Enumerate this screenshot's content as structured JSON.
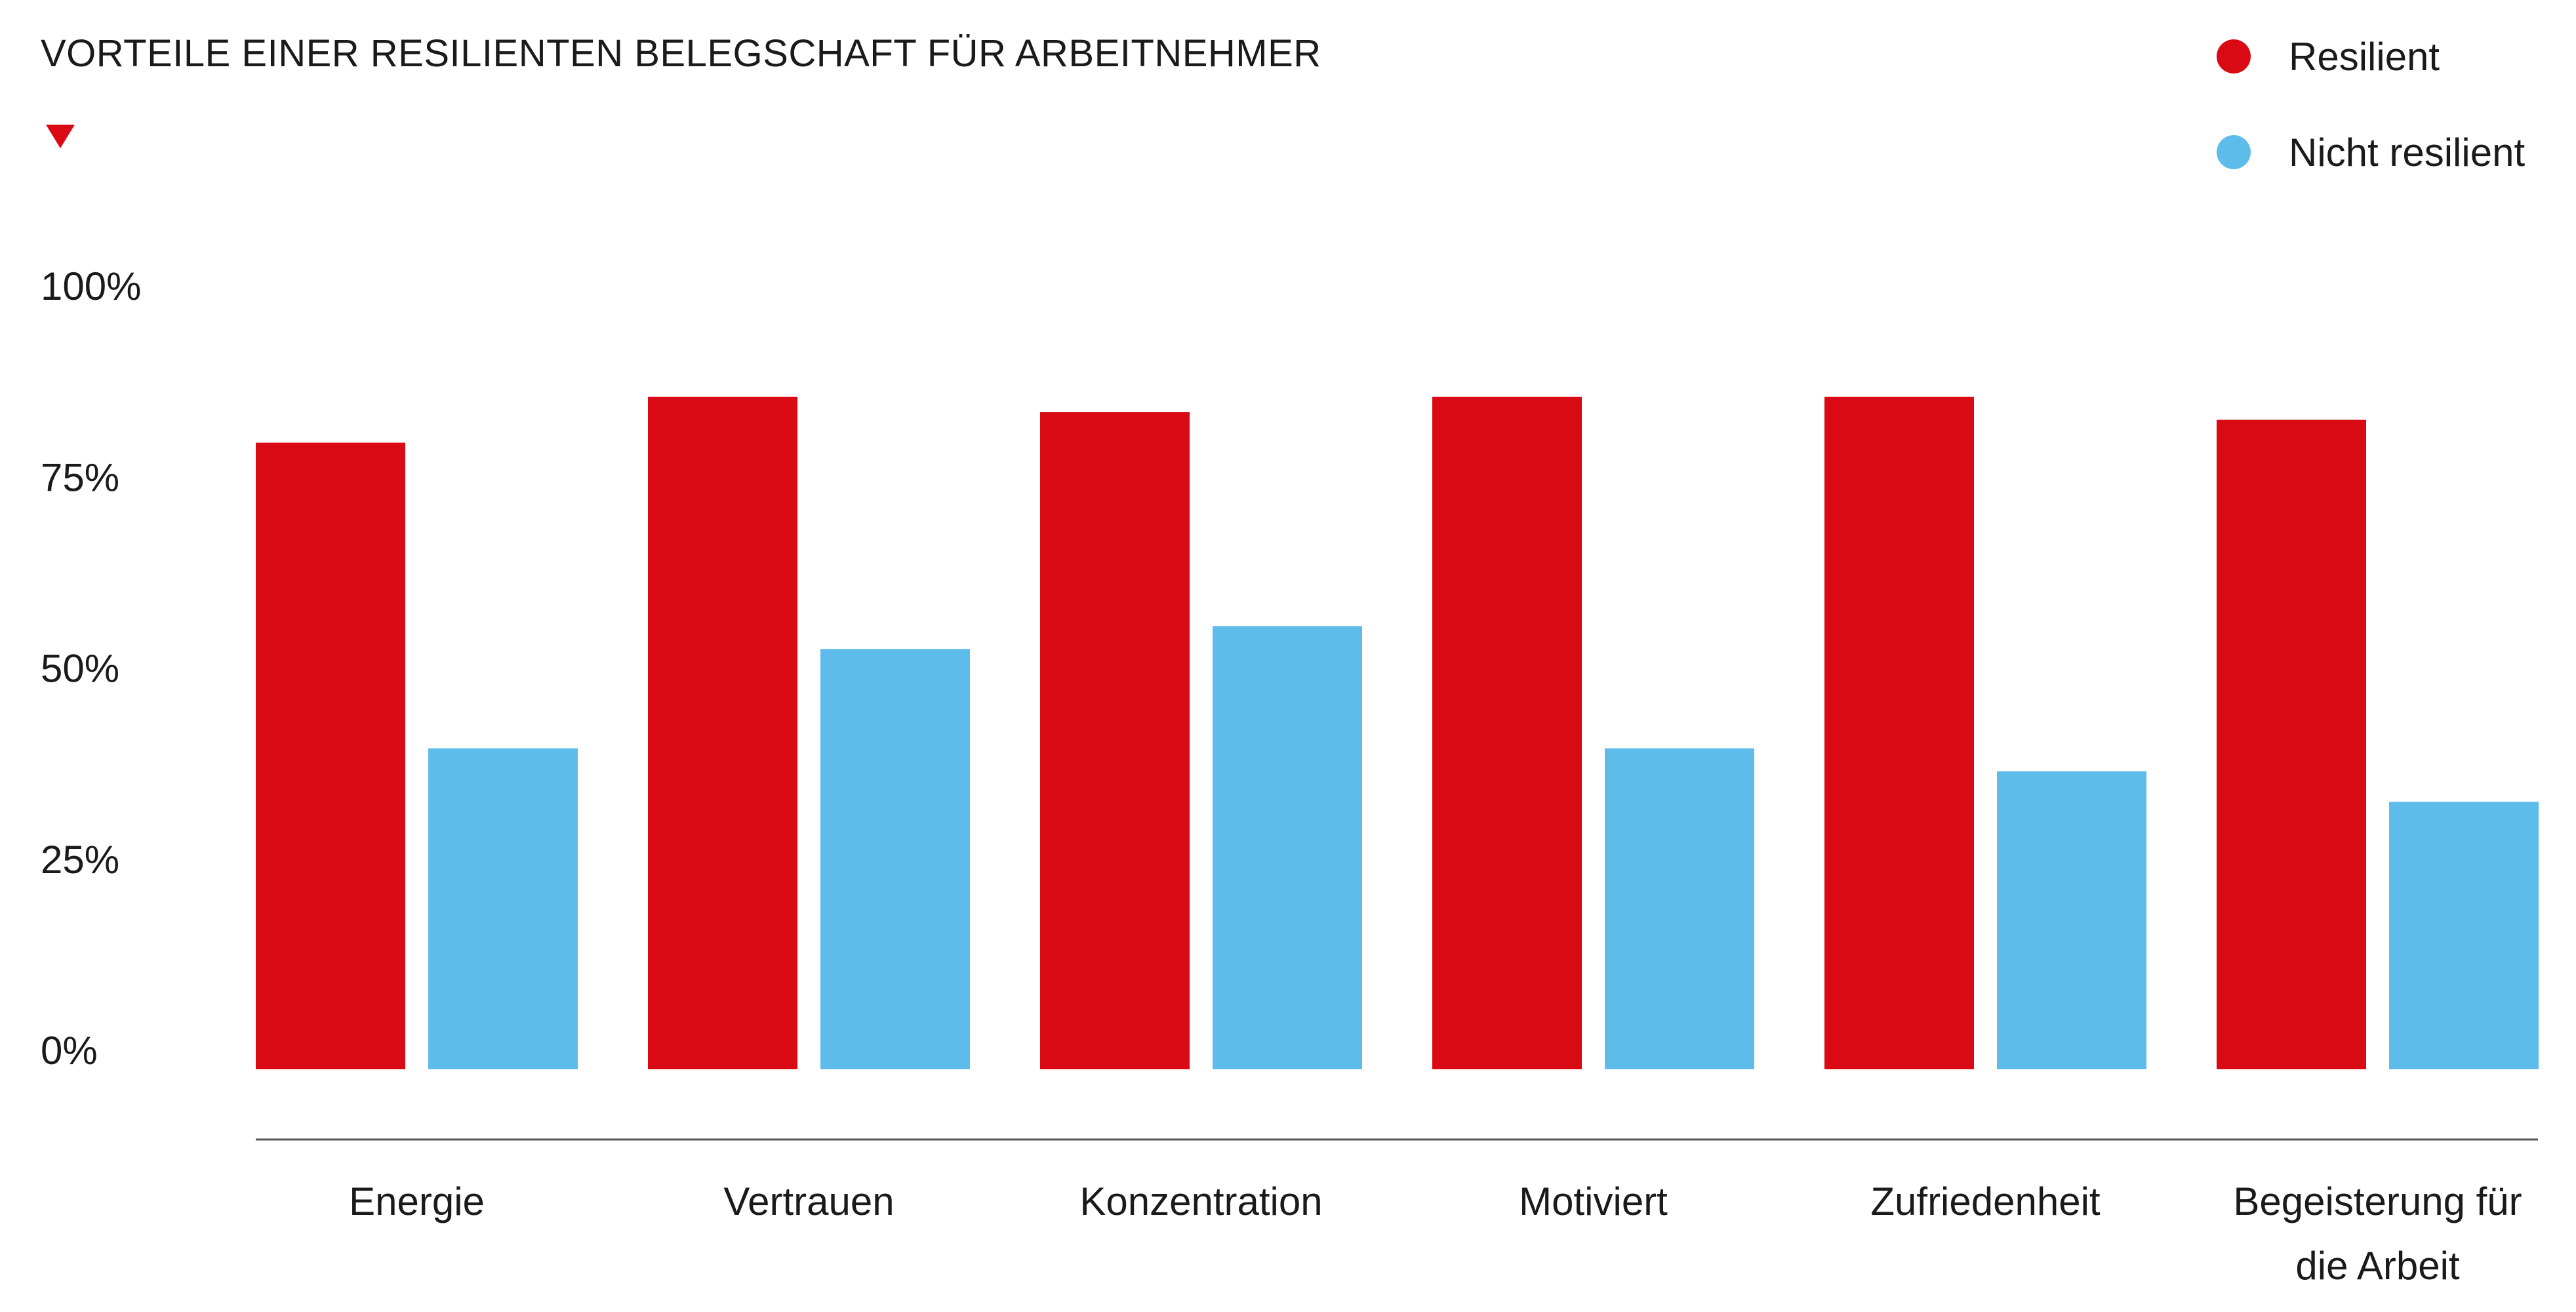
{
  "chart_data": {
    "type": "bar",
    "title": "VORTEILE EINER RESILIENTEN BELEGSCHAFT FÜR ARBEITNEHMER",
    "categories": [
      "Energie",
      "Vertrauen",
      "Konzentration",
      "Motiviert",
      "Zufriedenheit",
      "Begeisterung für die Arbeit"
    ],
    "category_lines": [
      [
        "Energie"
      ],
      [
        "Vertrauen"
      ],
      [
        "Konzentration"
      ],
      [
        "Motiviert"
      ],
      [
        "Zufriedenheit"
      ],
      [
        "Begeisterung für",
        "die Arbeit"
      ]
    ],
    "series": [
      {
        "name": "Resilient",
        "color": "#d90a13",
        "values": [
          82,
          88,
          86,
          88,
          88,
          85
        ]
      },
      {
        "name": "Nicht resilient",
        "color": "#5ebceb",
        "values": [
          42,
          55,
          58,
          42,
          39,
          35
        ]
      }
    ],
    "yticks": [
      "0%",
      "25%",
      "50%",
      "75%",
      "100%"
    ],
    "ytick_values": [
      0,
      25,
      50,
      75,
      100
    ],
    "ylim": [
      0,
      100
    ],
    "grid": false,
    "legend_position": "top-right",
    "xlabel": "",
    "ylabel": ""
  }
}
